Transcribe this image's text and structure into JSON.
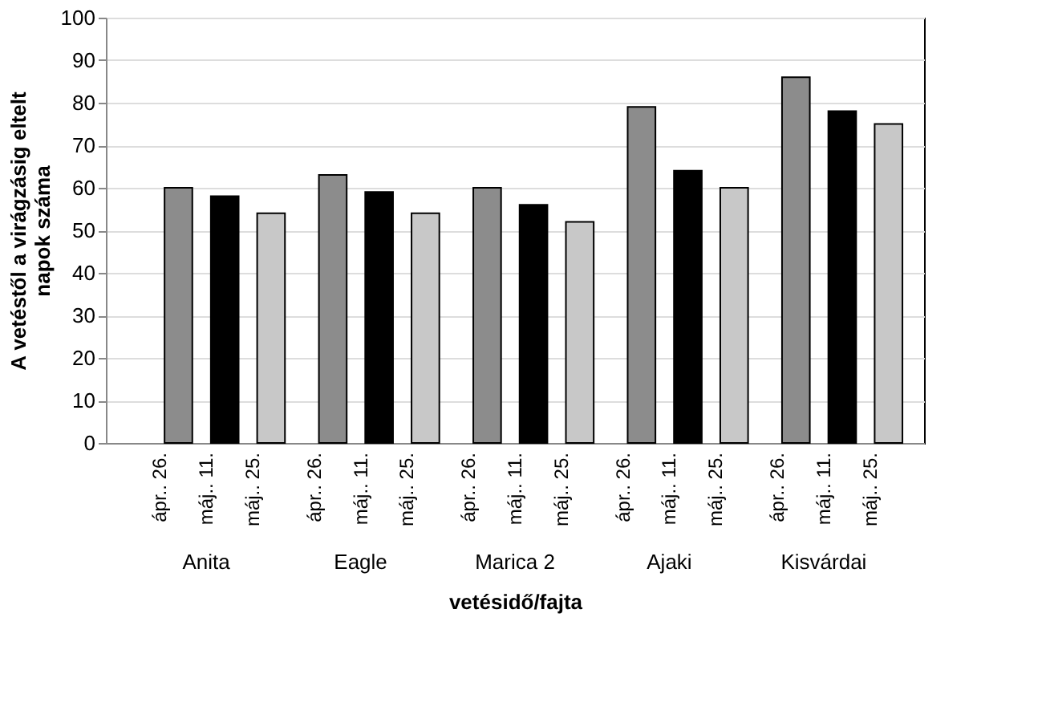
{
  "chart_data": {
    "type": "bar",
    "ylabel": "A vetéstől a virágzásig eltelt napok száma",
    "xlabel": "vetésidő/fajta",
    "categories": [
      "Anita",
      "Eagle",
      "Marica 2",
      "Ajaki",
      "Kisvárdai"
    ],
    "series": [
      {
        "name": "ápr.. 26.",
        "color": "#8c8c8c",
        "values": [
          60,
          63,
          60,
          79,
          86
        ]
      },
      {
        "name": "máj.. 11.",
        "color": "#000000",
        "values": [
          58,
          59,
          56,
          64,
          78
        ]
      },
      {
        "name": "máj.. 25.",
        "color": "#c8c8c8",
        "values": [
          54,
          54,
          52,
          60,
          75
        ]
      }
    ],
    "ylim": [
      0,
      100
    ],
    "yticks": [
      0,
      10,
      20,
      30,
      40,
      50,
      60,
      70,
      80,
      90,
      100
    ],
    "grid": "y",
    "legend": false
  }
}
